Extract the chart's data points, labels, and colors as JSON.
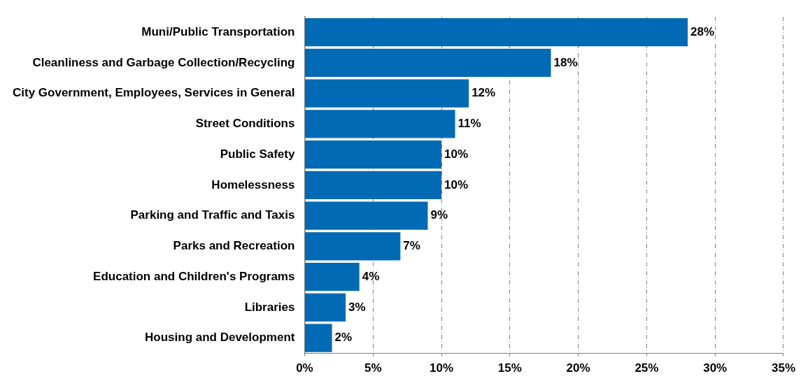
{
  "chart_data": {
    "type": "bar",
    "orientation": "horizontal",
    "categories": [
      "Muni/Public Transportation",
      "Cleanliness and Garbage Collection/Recycling",
      "City Government, Employees, Services in General",
      "Street Conditions",
      "Public Safety",
      "Homelessness",
      "Parking and Traffic and Taxis",
      "Parks and Recreation",
      "Education and Children's Programs",
      "Libraries",
      "Housing and Development"
    ],
    "values": [
      28,
      18,
      12,
      11,
      10,
      10,
      9,
      7,
      4,
      3,
      2
    ],
    "value_labels": [
      "28%",
      "18%",
      "12%",
      "11%",
      "10%",
      "10%",
      "9%",
      "7%",
      "4%",
      "3%",
      "2%"
    ],
    "color": "#006ab4",
    "xlim": [
      0,
      35
    ],
    "xticks": [
      {
        "value": 0,
        "label": "0%"
      },
      {
        "value": 5,
        "label": "5%"
      },
      {
        "value": 10,
        "label": "10%"
      },
      {
        "value": 15,
        "label": "15%"
      },
      {
        "value": 20,
        "label": "20%"
      },
      {
        "value": 25,
        "label": "25%"
      },
      {
        "value": 30,
        "label": "30%"
      },
      {
        "value": 35,
        "label": "35%"
      }
    ],
    "grid": "x",
    "legend": false
  }
}
